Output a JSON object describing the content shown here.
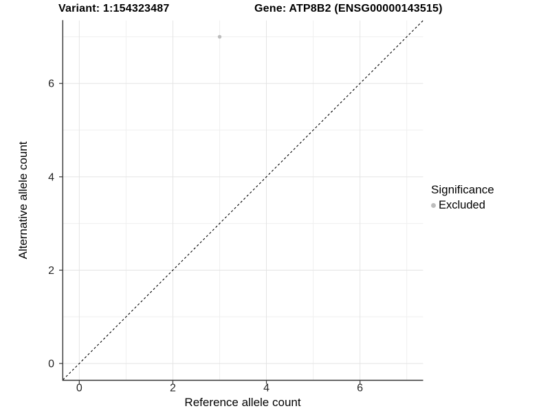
{
  "chart_data": {
    "type": "scatter",
    "title_left": "Variant: 1:154323487",
    "title_right": "Gene: ATP8B2 (ENSG00000143515)",
    "xlabel": "Reference allele count",
    "ylabel": "Alternative allele count",
    "xlim": [
      -0.35,
      7.35
    ],
    "ylim": [
      -0.35,
      7.35
    ],
    "xticks": [
      0,
      2,
      4,
      6
    ],
    "yticks": [
      0,
      2,
      4,
      6
    ],
    "xgrid_minor": [
      1,
      3,
      5,
      7
    ],
    "ygrid_minor": [
      1,
      3,
      5,
      7
    ],
    "grid": "on",
    "legend_position": "right",
    "points": [
      {
        "x": 3,
        "y": 7,
        "series": "Excluded"
      }
    ],
    "reference_line": {
      "style": "dashed",
      "from": [
        -0.35,
        -0.35
      ],
      "to": [
        7.35,
        7.35
      ]
    },
    "legend": {
      "title": "Significance",
      "entries": [
        {
          "label": "Excluded",
          "color": "#bdbdbd"
        }
      ]
    }
  },
  "colors": {
    "point": "#bdbdbd",
    "grid_major": "#e4e4e4",
    "grid_minor": "#efefef",
    "axis": "#333333",
    "tick_text": "#262626",
    "dashed_line": "#000000",
    "background": "#ffffff"
  }
}
